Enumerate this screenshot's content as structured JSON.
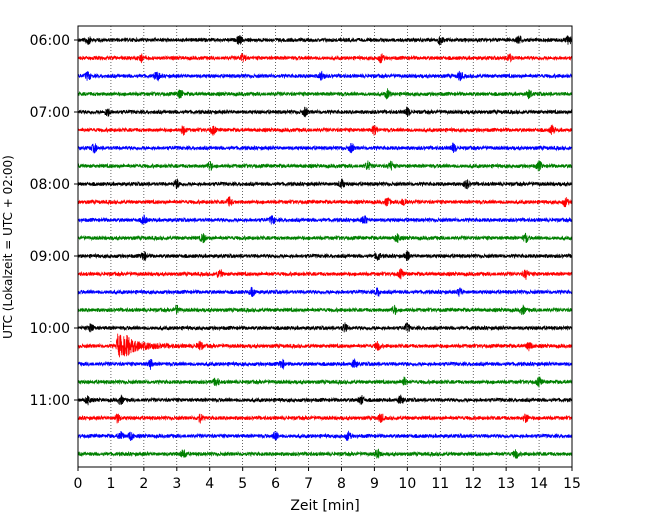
{
  "chart_data": {
    "type": "line",
    "subtype": "helicorder",
    "xlabel": "Zeit  [min]",
    "ylabel": "UTC (Lokalzeit = UTC + 02:00)",
    "xlim": [
      0,
      15
    ],
    "x_ticks": [
      "0",
      "1",
      "2",
      "3",
      "4",
      "5",
      "6",
      "7",
      "8",
      "9",
      "10",
      "11",
      "12",
      "13",
      "14",
      "15"
    ],
    "y_tick_labels": [
      "06:00",
      "07:00",
      "08:00",
      "09:00",
      "10:00",
      "11:00"
    ],
    "trace_start_times": [
      "06:00",
      "06:15",
      "06:30",
      "06:45",
      "07:00",
      "07:15",
      "07:30",
      "07:45",
      "08:00",
      "08:15",
      "08:30",
      "08:45",
      "09:00",
      "09:15",
      "09:30",
      "09:45",
      "10:00",
      "10:15",
      "10:30",
      "10:45",
      "11:00",
      "11:15",
      "11:30",
      "11:45"
    ],
    "trace_colors": [
      "#000000",
      "#ff0000",
      "#0000ff",
      "#008000"
    ],
    "minutes_per_trace": 15,
    "vertical_grid": "dotted",
    "event": {
      "trace_index": 17,
      "start_min": 1.15,
      "label": ""
    },
    "spikes": [
      [
        0.3,
        4.9,
        11.0,
        13.4,
        14.9
      ],
      [
        1.9,
        5.0,
        9.2,
        13.1
      ],
      [
        0.3,
        2.4,
        7.4,
        11.6
      ],
      [
        3.1,
        9.4,
        13.7
      ],
      [
        0.9,
        6.9,
        10.0
      ],
      [
        3.2,
        4.1,
        9.0,
        14.4
      ],
      [
        0.5,
        8.3,
        11.4
      ],
      [
        4.0,
        8.8,
        9.5,
        14.0
      ],
      [
        3.0,
        8.0,
        11.8
      ],
      [
        4.6,
        9.4,
        9.9,
        14.8
      ],
      [
        2.0,
        5.9,
        8.7
      ],
      [
        3.8,
        9.7,
        13.6
      ],
      [
        2.0,
        9.1,
        10.0
      ],
      [
        4.3,
        9.8,
        13.6
      ],
      [
        5.3,
        9.1,
        11.6
      ],
      [
        3.0,
        9.6,
        13.5
      ],
      [
        0.4,
        8.1,
        10.0
      ],
      [
        1.5,
        3.7,
        9.1,
        13.7
      ],
      [
        2.2,
        6.2,
        8.4
      ],
      [
        4.2,
        9.9,
        14.0
      ],
      [
        0.3,
        1.3,
        8.6,
        9.8
      ],
      [
        1.2,
        3.7,
        9.2,
        13.6
      ],
      [
        1.3,
        1.6,
        6.0,
        8.2
      ],
      [
        3.2,
        9.1,
        13.3
      ]
    ]
  }
}
